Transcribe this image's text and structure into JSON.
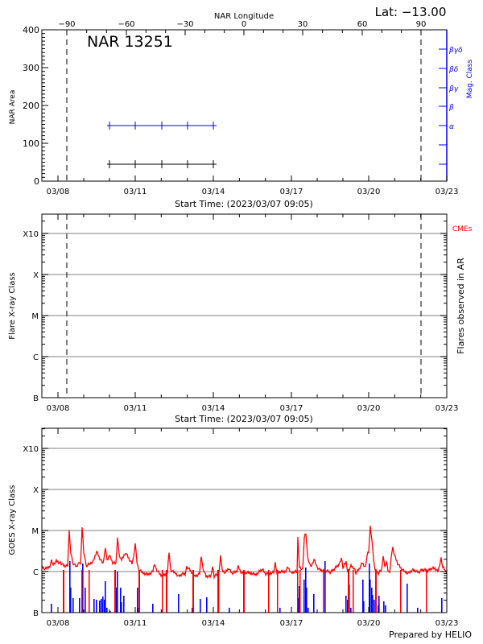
{
  "header": {
    "lat_label": "Lat: −13.00",
    "region_title": "NAR 13251",
    "top_axis_title": "NAR Longitude",
    "prepared_by": "Prepared by HELIO"
  },
  "colors": {
    "axis": "#000000",
    "mag_class": "#0000ff",
    "goes": "#ff0000",
    "flare_bars": "#0000ff",
    "cmes": "#ff0000",
    "gridline": "#999999"
  },
  "chart_data": [
    {
      "type": "line",
      "title": "NAR 13251",
      "subtitle": "Lat: −13.00",
      "xlabel": "Start Time: (2023/03/07 09:05)",
      "ylabel": "NAR Area",
      "y2label": "Mag. Class",
      "top_xlabel": "NAR Longitude",
      "x_ticks": [
        "03/08",
        "03/11",
        "03/14",
        "03/17",
        "03/20",
        "03/23"
      ],
      "top_x_ticks": [
        -90,
        -60,
        -30,
        0,
        30,
        60,
        90
      ],
      "y_ticks": [
        0,
        100,
        200,
        300,
        400
      ],
      "ylim": [
        0,
        400
      ],
      "y2_ticks": [
        "",
        "",
        "α",
        "β",
        "βγ",
        "βδ",
        "βγδ"
      ],
      "limb_markers": [
        "-90 longitude (≈03/08)",
        "+90 longitude (≈03/22)"
      ],
      "series": [
        {
          "name": "NAR Area",
          "color": "#000000",
          "x": [
            "03/10",
            "03/11",
            "03/12",
            "03/13",
            "03/14"
          ],
          "values": [
            45,
            45,
            45,
            45,
            45
          ]
        },
        {
          "name": "Mag. Class",
          "color": "#0000ff",
          "x": [
            "03/10",
            "03/11",
            "03/12",
            "03/13",
            "03/14"
          ],
          "values": [
            "α",
            "α",
            "α",
            "α",
            "α"
          ]
        }
      ],
      "grid": false
    },
    {
      "type": "bar",
      "title": "",
      "xlabel": "Start Time: (2023/03/07 09:05)",
      "ylabel": "Flare X-ray Class",
      "y2label": "Flares observed in AR",
      "legend": [
        "CMEs"
      ],
      "x_ticks": [
        "03/08",
        "03/11",
        "03/14",
        "03/17",
        "03/20",
        "03/23"
      ],
      "y_ticks": [
        "B",
        "C",
        "M",
        "X",
        "X10"
      ],
      "series": [],
      "grid": true
    },
    {
      "type": "line",
      "title": "",
      "xlabel": "",
      "ylabel": "GOES X-ray Class",
      "x_ticks": [
        "03/08",
        "03/11",
        "03/14",
        "03/17",
        "03/20",
        "03/23"
      ],
      "y_ticks": [
        "B",
        "C",
        "M",
        "X",
        "X10"
      ],
      "series": [
        {
          "name": "GOES X-ray flux",
          "color": "#ff0000",
          "note": "background mostly between C1 and C3; peaks near M1 on 03/08, 03/09, 03/17 and 03/20"
        },
        {
          "name": "Flare events",
          "color": "#0000ff",
          "note": "vertical bars, mostly B-class with several C-class"
        }
      ],
      "grid": true
    }
  ],
  "panel1": {
    "ylabel": "NAR Area",
    "y2label": "Mag. Class",
    "xlabel": "Start Time: (2023/03/07 09:05)",
    "yticks": [
      "0",
      "100",
      "200",
      "300",
      "400"
    ],
    "top_ticks": [
      "−90",
      "−60",
      "−30",
      "0",
      "30",
      "60",
      "90"
    ],
    "mag_ticks": [
      "α",
      "β",
      "βγ",
      "βδ",
      "βγδ"
    ]
  },
  "panel2": {
    "ylabel": "Flare X-ray Class",
    "y2label": "Flares observed in AR",
    "xlabel": "Start Time: (2023/03/07 09:05)",
    "legend_cmes": "CMEs",
    "yticks": [
      "B",
      "C",
      "M",
      "X",
      "X10"
    ]
  },
  "panel3": {
    "ylabel": "GOES X-ray Class",
    "yticks": [
      "B",
      "C",
      "M",
      "X",
      "X10"
    ]
  },
  "date_ticks": [
    "03/08",
    "03/11",
    "03/14",
    "03/17",
    "03/20",
    "03/23"
  ]
}
